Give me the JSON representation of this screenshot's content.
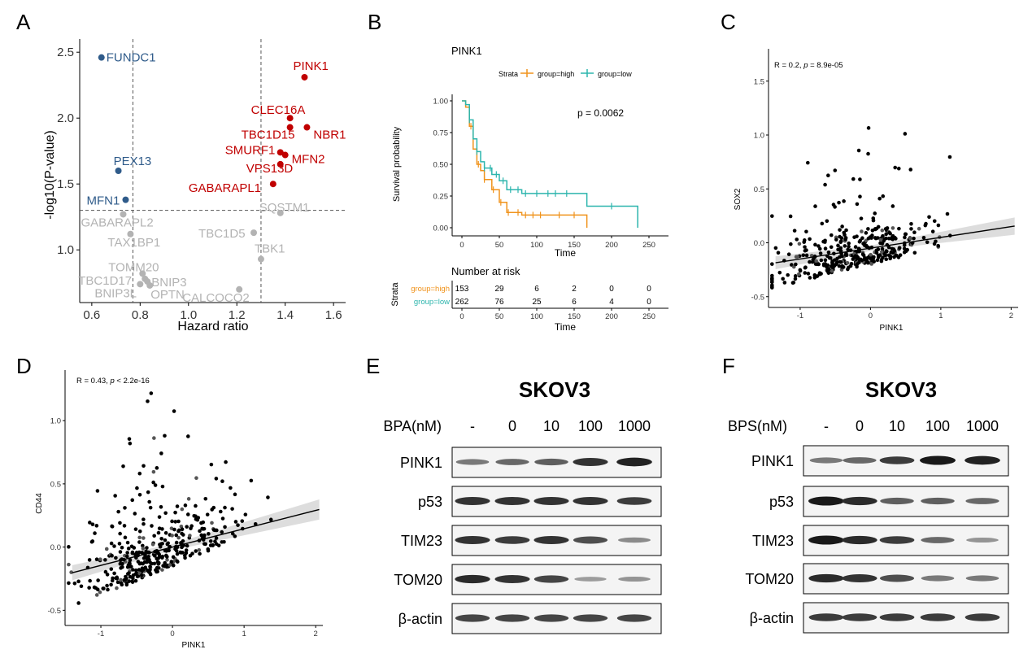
{
  "panel_letters": [
    "A",
    "B",
    "C",
    "D",
    "E",
    "F"
  ],
  "panelA": {
    "xlabel": "Hazard ratio",
    "ylabel": "-log10(P-value)",
    "xticks": [
      "0.6",
      "0.8",
      "1.0",
      "1.2",
      "1.4",
      "1.6"
    ],
    "yticks": [
      "1.0",
      "1.5",
      "2.0",
      "2.5"
    ],
    "vlines": [
      0.77,
      1.3
    ],
    "hline": 1.3,
    "colors": {
      "blue": "#2f5b8a",
      "red": "#c00000",
      "gray": "#b3b3b3"
    }
  },
  "panelB": {
    "title": "PINK1",
    "legend_title": "Strata",
    "legend_high": "group=high",
    "legend_low": "group=low",
    "pvalue": "p = 0.0062",
    "ylabel": "Survival probability",
    "xlabel": "Time",
    "yticks": [
      "0.00",
      "0.25",
      "0.50",
      "0.75",
      "1.00"
    ],
    "xticks": [
      "0",
      "50",
      "100",
      "150",
      "200",
      "250"
    ],
    "risk_title": "Number at risk",
    "risk_ylabel": "Strata",
    "risk_high": [
      "153",
      "29",
      "6",
      "2",
      "0",
      "0"
    ],
    "risk_low": [
      "262",
      "76",
      "25",
      "6",
      "4",
      "0"
    ],
    "risk_xlabel": "Time",
    "colors": {
      "high": "#f0931c",
      "low": "#2cb5ad"
    }
  },
  "panelC": {
    "annotation_r": "R = 0.2, ",
    "annotation_p": "p",
    "annotation_rest": " = 8.9e-05",
    "xlabel": "PINK1",
    "ylabel": "SOX2",
    "xticks": [
      "-1",
      "0",
      "1",
      "2"
    ],
    "yticks": [
      "-0.5",
      "0.0",
      "0.5",
      "1.0",
      "1.5"
    ]
  },
  "panelD": {
    "annotation_r": "R = 0.43, ",
    "annotation_p": "p",
    "annotation_rest": " < 2.2e-16",
    "xlabel": "PINK1",
    "ylabel": "CD44",
    "xticks": [
      "-1",
      "0",
      "1",
      "2"
    ],
    "yticks": [
      "-0.5",
      "0.0",
      "0.5",
      "1.0"
    ]
  },
  "panelE": {
    "title": "SKOV3",
    "treatment": "BPA(nM)",
    "lanes": [
      "-",
      "0",
      "10",
      "100",
      "1000"
    ],
    "proteins": [
      "PINK1",
      "p53",
      "TIM23",
      "TOM20",
      "β-actin"
    ]
  },
  "panelF": {
    "title": "SKOV3",
    "treatment": "BPS(nM)",
    "lanes": [
      "-",
      "0",
      "10",
      "100",
      "1000"
    ],
    "proteins": [
      "PINK1",
      "p53",
      "TIM23",
      "TOM20",
      "β-actin"
    ]
  },
  "chart_data": [
    {
      "type": "scatter",
      "panel": "A",
      "xlabel": "Hazard ratio",
      "ylabel": "-log10(P-value)",
      "xlim": [
        0.55,
        1.65
      ],
      "ylim": [
        0.6,
        2.6
      ],
      "points": [
        {
          "label": "FUNDC1",
          "x": 0.64,
          "y": 2.46,
          "group": "blue"
        },
        {
          "label": "PEX13",
          "x": 0.71,
          "y": 1.6,
          "group": "blue"
        },
        {
          "label": "MFN1",
          "x": 0.74,
          "y": 1.38,
          "group": "blue"
        },
        {
          "label": "PINK1",
          "x": 1.48,
          "y": 2.31,
          "group": "red"
        },
        {
          "label": "CLEC16A",
          "x": 1.42,
          "y": 2.0,
          "group": "red"
        },
        {
          "label": "TBC1D15",
          "x": 1.42,
          "y": 1.93,
          "group": "red"
        },
        {
          "label": "NBR1",
          "x": 1.49,
          "y": 1.93,
          "group": "red"
        },
        {
          "label": "SMURF1",
          "x": 1.38,
          "y": 1.74,
          "group": "red"
        },
        {
          "label": "MFN2",
          "x": 1.4,
          "y": 1.72,
          "group": "red"
        },
        {
          "label": "VPS13D",
          "x": 1.38,
          "y": 1.65,
          "group": "red"
        },
        {
          "label": "GABARAPL1",
          "x": 1.35,
          "y": 1.5,
          "group": "red"
        },
        {
          "label": "SQSTM1",
          "x": 1.38,
          "y": 1.28,
          "group": "gray"
        },
        {
          "label": "GABARAPL2",
          "x": 0.73,
          "y": 1.27,
          "group": "gray"
        },
        {
          "label": "TAX1BP1",
          "x": 0.76,
          "y": 1.12,
          "group": "gray"
        },
        {
          "label": "TBC1D5",
          "x": 1.27,
          "y": 1.13,
          "group": "gray"
        },
        {
          "label": "TBK1",
          "x": 1.3,
          "y": 0.93,
          "group": "gray"
        },
        {
          "label": "TOMM20",
          "x": 0.81,
          "y": 0.82,
          "group": "gray"
        },
        {
          "label": "TBC1D17",
          "x": 0.82,
          "y": 0.78,
          "group": "gray"
        },
        {
          "label": "BNIP3",
          "x": 0.83,
          "y": 0.76,
          "group": "gray"
        },
        {
          "label": "BNIP3L",
          "x": 0.8,
          "y": 0.74,
          "group": "gray"
        },
        {
          "label": "OPTN",
          "x": 0.84,
          "y": 0.73,
          "group": "gray"
        },
        {
          "label": "CALCOCO2",
          "x": 1.21,
          "y": 0.7,
          "group": "gray"
        }
      ]
    },
    {
      "type": "line",
      "panel": "B",
      "title": "PINK1",
      "xlabel": "Time",
      "ylabel": "Survival probability",
      "xlim": [
        0,
        250
      ],
      "ylim": [
        0,
        1
      ],
      "series": [
        {
          "name": "group=high",
          "x": [
            0,
            5,
            10,
            15,
            20,
            25,
            30,
            40,
            50,
            60,
            80,
            100,
            120,
            150,
            167
          ],
          "y": [
            1.0,
            0.95,
            0.8,
            0.62,
            0.5,
            0.45,
            0.38,
            0.3,
            0.2,
            0.12,
            0.1,
            0.1,
            0.1,
            0.1,
            0.0
          ]
        },
        {
          "name": "group=low",
          "x": [
            0,
            5,
            10,
            15,
            20,
            25,
            30,
            40,
            50,
            60,
            80,
            100,
            130,
            167,
            200,
            235
          ],
          "y": [
            1.0,
            0.97,
            0.85,
            0.7,
            0.6,
            0.52,
            0.47,
            0.42,
            0.37,
            0.3,
            0.27,
            0.27,
            0.27,
            0.17,
            0.17,
            0.0
          ]
        }
      ]
    },
    {
      "type": "scatter",
      "panel": "C",
      "xlabel": "PINK1",
      "ylabel": "SOX2",
      "xlim": [
        -1.45,
        2.1
      ],
      "ylim": [
        -0.6,
        1.8
      ],
      "fit": {
        "intercept": -0.05,
        "slope": 0.1
      }
    },
    {
      "type": "scatter",
      "panel": "D",
      "xlabel": "PINK1",
      "ylabel": "CD44",
      "xlim": [
        -1.5,
        2.1
      ],
      "ylim": [
        -0.62,
        1.4
      ],
      "fit": {
        "intercept": 0.0,
        "slope": 0.145
      }
    }
  ]
}
